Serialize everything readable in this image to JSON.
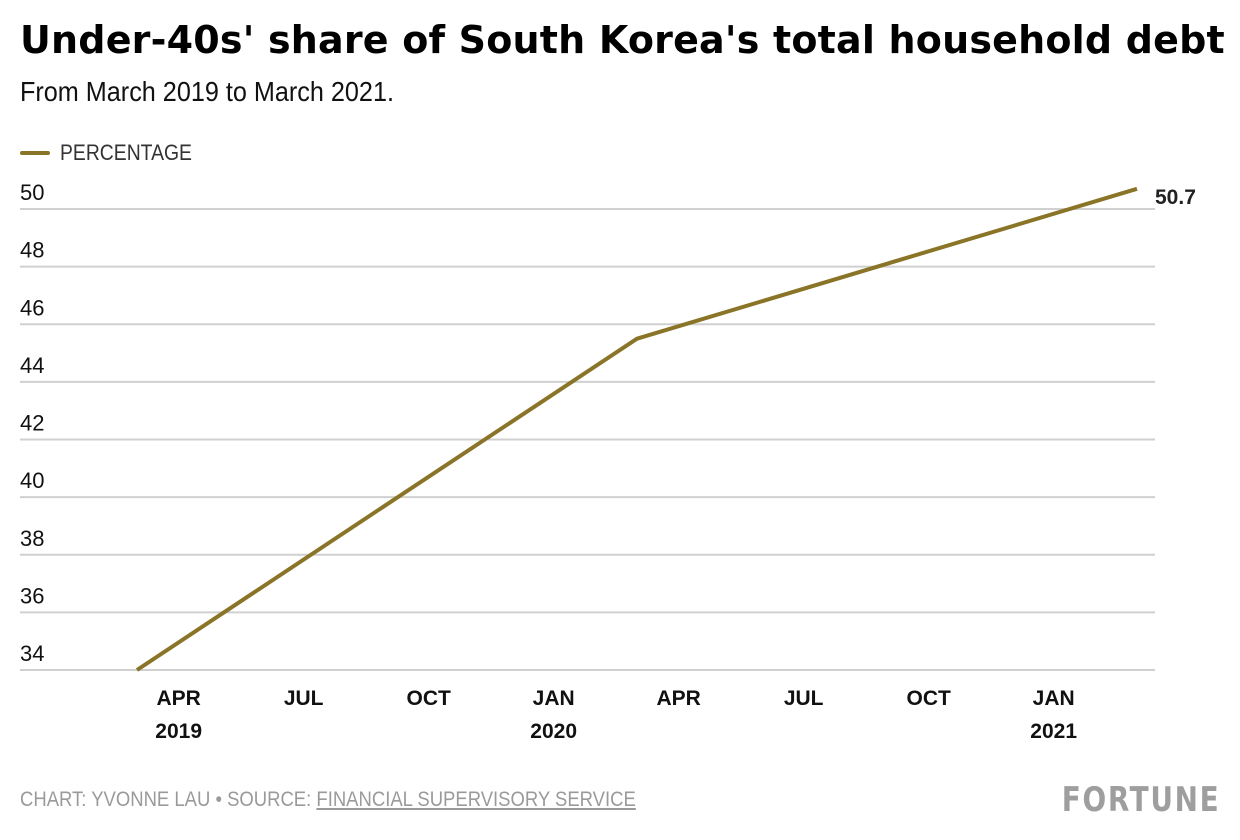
{
  "header": {
    "title": "Under-40s' share of South Korea's total household debt",
    "subtitle": "From March 2019 to March 2021."
  },
  "legend": {
    "label": "PERCENTAGE",
    "color": "#8a7427"
  },
  "footer": {
    "credit": "CHART: YVONNE LAU • SOURCE: ",
    "source_link": "FINANCIAL SUPERVISORY SERVICE",
    "logo": "FORTUNE"
  },
  "colors": {
    "line": "#8a7427",
    "grid": "#d0d0d0"
  },
  "chart_data": {
    "type": "line",
    "title": "Under-40s' share of South Korea's total household debt",
    "subtitle": "From March 2019 to March 2021.",
    "xlabel": "",
    "ylabel": "",
    "ylim": [
      34,
      50
    ],
    "yticks": [
      50,
      48,
      46,
      44,
      42,
      40,
      38,
      36,
      34
    ],
    "grid": true,
    "legend_position": "top-left",
    "x_range_months": [
      "2019-03",
      "2021-03"
    ],
    "xticks": [
      {
        "month": "2019-04",
        "line1": "APR",
        "line2": "2019"
      },
      {
        "month": "2019-07",
        "line1": "JUL",
        "line2": ""
      },
      {
        "month": "2019-10",
        "line1": "OCT",
        "line2": ""
      },
      {
        "month": "2020-01",
        "line1": "JAN",
        "line2": "2020"
      },
      {
        "month": "2020-04",
        "line1": "APR",
        "line2": ""
      },
      {
        "month": "2020-07",
        "line1": "JUL",
        "line2": ""
      },
      {
        "month": "2020-10",
        "line1": "OCT",
        "line2": ""
      },
      {
        "month": "2021-01",
        "line1": "JAN",
        "line2": "2021"
      }
    ],
    "series": [
      {
        "name": "PERCENTAGE",
        "x": [
          "2019-03",
          "2020-03",
          "2021-03"
        ],
        "values": [
          34.0,
          45.5,
          50.7
        ]
      }
    ],
    "annotations": [
      {
        "x": "2021-03",
        "text": "50.7"
      }
    ]
  }
}
